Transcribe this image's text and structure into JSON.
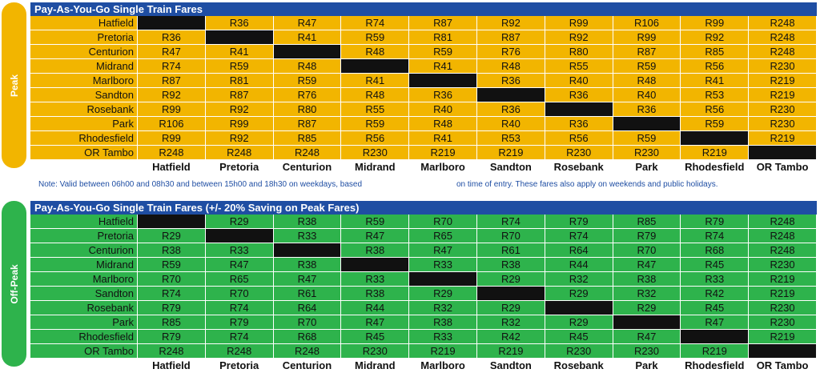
{
  "stations": [
    "Hatfield",
    "Pretoria",
    "Centurion",
    "Midrand",
    "Marlboro",
    "Sandton",
    "Rosebank",
    "Park",
    "Rhodesfield",
    "OR Tambo"
  ],
  "peak": {
    "side_label": "Peak",
    "title": "Pay-As-You-Go Single Train Fares",
    "color": "#f2b500",
    "rows": [
      [
        "",
        "R36",
        "R47",
        "R74",
        "R87",
        "R92",
        "R99",
        "R106",
        "R99",
        "R248"
      ],
      [
        "R36",
        "",
        "R41",
        "R59",
        "R81",
        "R87",
        "R92",
        "R99",
        "R92",
        "R248"
      ],
      [
        "R47",
        "R41",
        "",
        "R48",
        "R59",
        "R76",
        "R80",
        "R87",
        "R85",
        "R248"
      ],
      [
        "R74",
        "R59",
        "R48",
        "",
        "R41",
        "R48",
        "R55",
        "R59",
        "R56",
        "R230"
      ],
      [
        "R87",
        "R81",
        "R59",
        "R41",
        "",
        "R36",
        "R40",
        "R48",
        "R41",
        "R219"
      ],
      [
        "R92",
        "R87",
        "R76",
        "R48",
        "R36",
        "",
        "R36",
        "R40",
        "R53",
        "R219"
      ],
      [
        "R99",
        "R92",
        "R80",
        "R55",
        "R40",
        "R36",
        "",
        "R36",
        "R56",
        "R230"
      ],
      [
        "R106",
        "R99",
        "R87",
        "R59",
        "R48",
        "R40",
        "R36",
        "",
        "R59",
        "R230"
      ],
      [
        "R99",
        "R92",
        "R85",
        "R56",
        "R41",
        "R53",
        "R56",
        "R59",
        "",
        "R219"
      ],
      [
        "R248",
        "R248",
        "R248",
        "R230",
        "R219",
        "R219",
        "R230",
        "R230",
        "R219",
        ""
      ]
    ]
  },
  "note": {
    "part1": "Note: Valid between 06h00 and 08h30 and between 15h00 and 18h30 on weekdays, based",
    "part2": "on time of entry. These fares also apply on weekends and public holidays."
  },
  "offpeak": {
    "side_label": "Off-Peak",
    "title": "Pay-As-You-Go Single Train Fares (+/- 20% Saving on Peak Fares)",
    "color": "#2eb34c",
    "rows": [
      [
        "",
        "R29",
        "R38",
        "R59",
        "R70",
        "R74",
        "R79",
        "R85",
        "R79",
        "R248"
      ],
      [
        "R29",
        "",
        "R33",
        "R47",
        "R65",
        "R70",
        "R74",
        "R79",
        "R74",
        "R248"
      ],
      [
        "R38",
        "R33",
        "",
        "R38",
        "R47",
        "R61",
        "R64",
        "R70",
        "R68",
        "R248"
      ],
      [
        "R59",
        "R47",
        "R38",
        "",
        "R33",
        "R38",
        "R44",
        "R47",
        "R45",
        "R230"
      ],
      [
        "R70",
        "R65",
        "R47",
        "R33",
        "",
        "R29",
        "R32",
        "R38",
        "R33",
        "R219"
      ],
      [
        "R74",
        "R70",
        "R61",
        "R38",
        "R29",
        "",
        "R29",
        "R32",
        "R42",
        "R219"
      ],
      [
        "R79",
        "R74",
        "R64",
        "R44",
        "R32",
        "R29",
        "",
        "R29",
        "R45",
        "R230"
      ],
      [
        "R85",
        "R79",
        "R70",
        "R47",
        "R38",
        "R32",
        "R29",
        "",
        "R47",
        "R230"
      ],
      [
        "R79",
        "R74",
        "R68",
        "R45",
        "R33",
        "R42",
        "R45",
        "R47",
        "",
        "R219"
      ],
      [
        "R248",
        "R248",
        "R248",
        "R230",
        "R219",
        "R219",
        "R230",
        "R230",
        "R219",
        ""
      ]
    ]
  },
  "colors": {
    "title_bar": "#1f4ea3",
    "diagonal": "#111111",
    "note_text": "#1f4ea3"
  }
}
